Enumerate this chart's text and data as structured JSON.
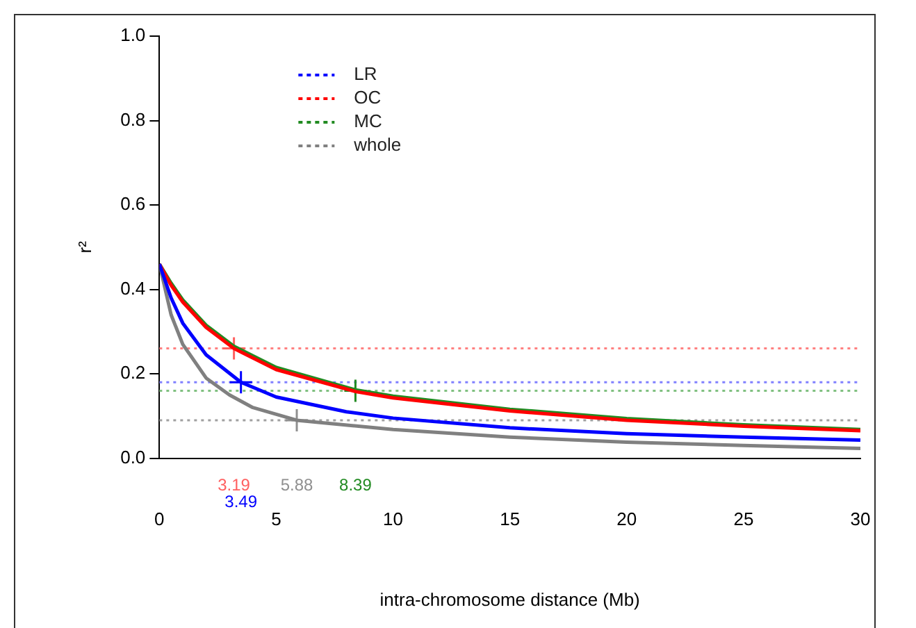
{
  "chart_data": {
    "type": "line",
    "xlabel": "intra-chromosome distance (Mb)",
    "ylabel": "r²",
    "xlim": [
      0,
      30
    ],
    "xticks": [
      0,
      5,
      10,
      15,
      20,
      25,
      30
    ],
    "ylim": [
      0,
      1
    ],
    "yticks": [
      {
        "value": 0,
        "label": "0.0"
      },
      0.2,
      0.4,
      0.6,
      0.8,
      {
        "value": 1,
        "label": "1.0"
      }
    ],
    "grid": false,
    "legend": "top left",
    "marker": "none",
    "line_style": "solid",
    "series": [
      {
        "name": "LR",
        "color": "#0000ff",
        "x": [
          0,
          0.5,
          1,
          2,
          3.49,
          5,
          8,
          10,
          15,
          20,
          25,
          30
        ],
        "values": [
          0.46,
          0.38,
          0.32,
          0.245,
          0.18,
          0.145,
          0.11,
          0.095,
          0.072,
          0.058,
          0.05,
          0.043
        ]
      },
      {
        "name": "OC",
        "color": "#ff0000",
        "x": [
          0,
          0.5,
          1,
          2,
          3.19,
          5,
          8.39,
          10,
          15,
          20,
          25,
          30
        ],
        "values": [
          0.46,
          0.41,
          0.37,
          0.31,
          0.26,
          0.21,
          0.158,
          0.143,
          0.112,
          0.09,
          0.076,
          0.065
        ]
      },
      {
        "name": "MC",
        "color": "#228b22",
        "x": [
          0,
          0.5,
          1,
          2,
          3.19,
          5,
          8.39,
          10,
          15,
          20,
          25,
          30
        ],
        "values": [
          0.46,
          0.415,
          0.375,
          0.315,
          0.265,
          0.215,
          0.162,
          0.147,
          0.116,
          0.094,
          0.079,
          0.068
        ]
      },
      {
        "name": "whole",
        "color": "#808080",
        "x": [
          0,
          0.5,
          1,
          2,
          3,
          4,
          5.88,
          10,
          15,
          20,
          25,
          30
        ],
        "values": [
          0.46,
          0.34,
          0.27,
          0.19,
          0.15,
          0.12,
          0.09,
          0.068,
          0.05,
          0.038,
          0.03,
          0.023
        ]
      },
      {
        "type": "scatter",
        "marker": "cross",
        "color": "#ff6060",
        "x": [
          3.19
        ],
        "values": [
          0.26
        ]
      },
      {
        "type": "scatter",
        "marker": "cross",
        "color": "#0000ff",
        "x": [
          3.49
        ],
        "values": [
          0.18
        ]
      },
      {
        "type": "scatter",
        "marker": "cross",
        "color": "#228b22",
        "x": [
          8.39
        ],
        "values": [
          0.16
        ]
      },
      {
        "type": "scatter",
        "marker": "cross",
        "color": "#909090",
        "x": [
          5.88
        ],
        "values": [
          0.09
        ]
      }
    ],
    "ref_lines": [
      {
        "axis": "y",
        "value": 0.26,
        "color": "#ff8080",
        "line_style": "dotted"
      },
      {
        "axis": "y",
        "value": 0.18,
        "color": "#8080ff",
        "line_style": "dotted"
      },
      {
        "axis": "y",
        "value": 0.16,
        "color": "#80c080",
        "line_style": "dotted"
      },
      {
        "axis": "y",
        "value": 0.09,
        "color": "#a0a0a0",
        "line_style": "dotted"
      }
    ],
    "annotations": [
      "3.19",
      "3.49",
      "8.39",
      "5.88"
    ]
  }
}
